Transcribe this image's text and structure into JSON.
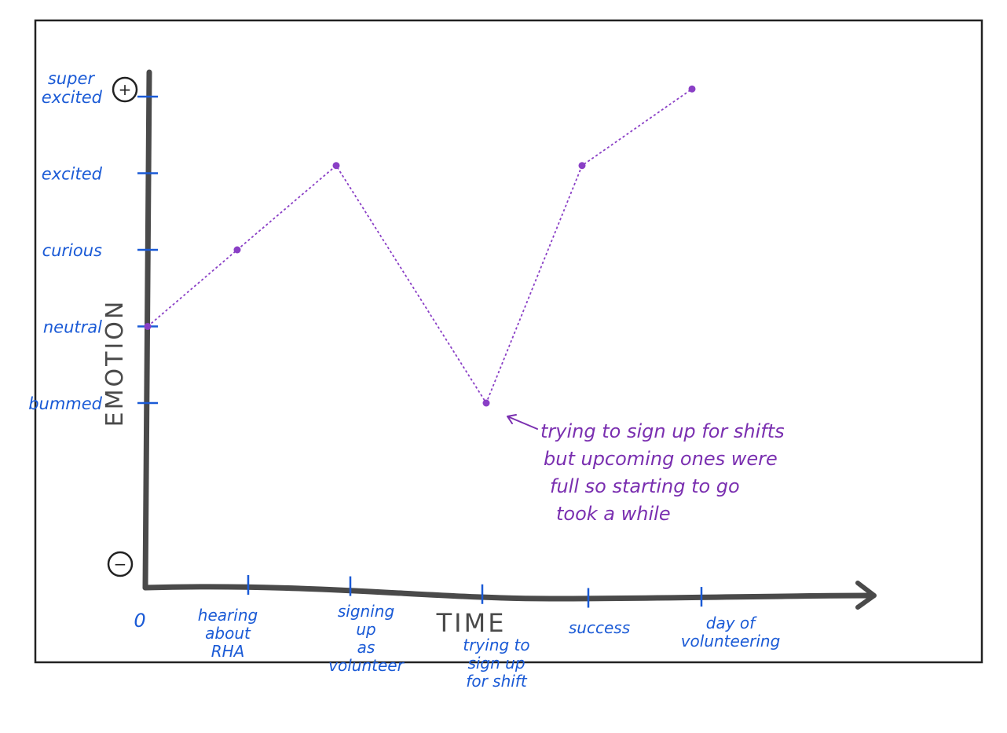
{
  "chart_data": {
    "type": "line",
    "title": "",
    "xlabel": "TIME",
    "ylabel": "EMOTION",
    "y_plus_symbol": "+",
    "y_minus_symbol": "−",
    "x_origin_label": "0",
    "y_levels": [
      {
        "label": [
          "super",
          "excited"
        ],
        "value": 4
      },
      {
        "label": [
          "excited"
        ],
        "value": 3
      },
      {
        "label": [
          "curious"
        ],
        "value": 2
      },
      {
        "label": [
          "neutral"
        ],
        "value": 1
      },
      {
        "label": [
          "bummed"
        ],
        "value": 0
      }
    ],
    "categories": [
      {
        "label": [
          "hearing",
          "about",
          "RHA"
        ]
      },
      {
        "label": [
          "signing",
          "up",
          "as",
          "volunteer"
        ]
      },
      {
        "label": [
          "trying to",
          "sign up",
          "for shift"
        ]
      },
      {
        "label": [
          "success"
        ]
      },
      {
        "label": [
          "day of",
          "volunteering"
        ]
      }
    ],
    "x": [
      0,
      1,
      2,
      3,
      4,
      5
    ],
    "y": [
      1,
      2,
      3.1,
      0,
      3.1,
      4.1
    ],
    "line_color": "#8a3fc6",
    "label_color": "#1a5ad6",
    "annotation": {
      "point_index": 3,
      "lines": [
        "trying to sign up for shifts",
        "but upcoming ones were",
        "full so starting to go",
        "took a while"
      ],
      "color": "#7a2fb0"
    }
  }
}
